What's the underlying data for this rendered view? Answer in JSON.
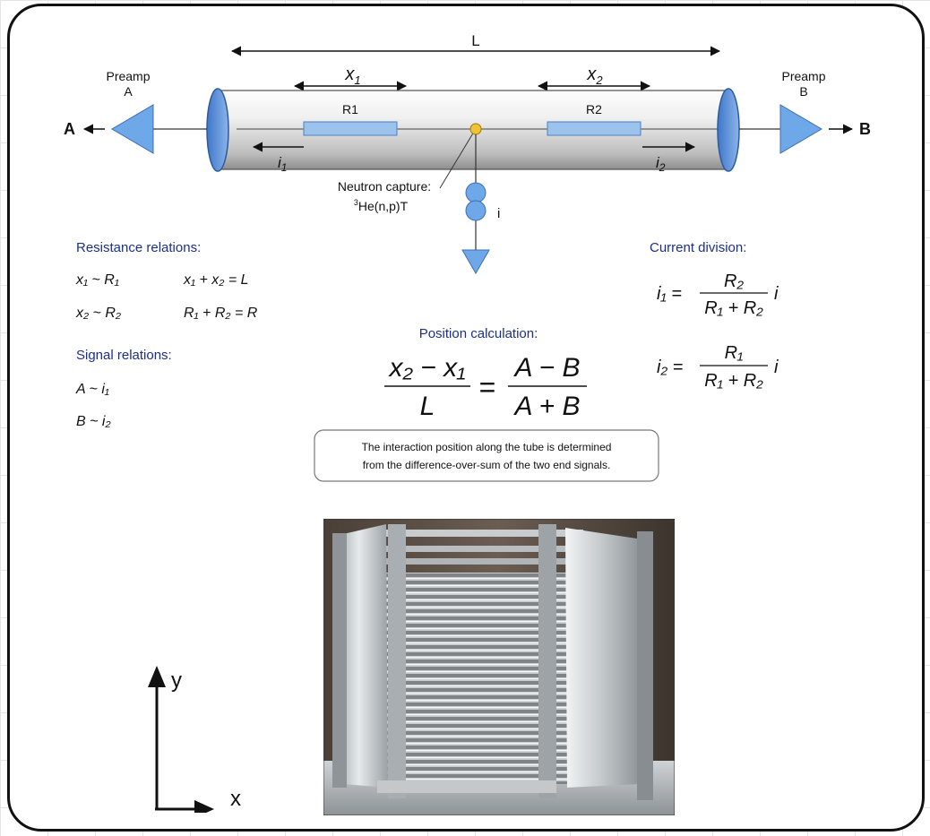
{
  "diagram": {
    "length_label": "L",
    "x1_label": "x",
    "x1_sub": "1",
    "x2_label": "x",
    "x2_sub": "2",
    "r1_label": "R1",
    "r2_label": "R2",
    "i1_label": "i",
    "i1_sub": "1",
    "i2_label": "i",
    "i2_sub": "2",
    "preamp_a": {
      "line1": "Preamp",
      "line2": "A"
    },
    "preamp_b": {
      "line1": "Preamp",
      "line2": "B"
    },
    "out_a": "A",
    "out_b": "B",
    "capture_line1": "Neutron capture:",
    "capture_sup": "3",
    "capture_line2": "He(n,p)T",
    "current_label": "i",
    "colors": {
      "triangle": "#6fa8e8",
      "resistor": "#9cc3ec",
      "heading": "#1a2f8f",
      "capture": "#f2c233"
    }
  },
  "resistance": {
    "heading": "Resistance relations:",
    "rows": [
      {
        "a": "x₁ ~ R₁",
        "b": "x₁ + x₂ = L"
      },
      {
        "a": "x₂ ~ R₂",
        "b": "R₁ + R₂ = R"
      }
    ]
  },
  "signal": {
    "heading": "Signal relations:",
    "rows": [
      "A ~ i₁",
      "B ~ i₂"
    ]
  },
  "position": {
    "heading": "Position calculation:",
    "lhs_num": "x₂ − x₁",
    "lhs_den": "L",
    "equals": "=",
    "rhs_num": "A − B",
    "rhs_den": "A + B"
  },
  "current_division": {
    "heading": "Current division:",
    "eq1": {
      "lhs": "i₁ =",
      "num": "R₂",
      "den": "R₁ + R₂",
      "tail": "i"
    },
    "eq2": {
      "lhs": "i₂ =",
      "num": "R₁",
      "den": "R₁ + R₂",
      "tail": "i"
    }
  },
  "note": {
    "line1": "The interaction position along the tube is determined",
    "line2": "from the difference-over-sum of the  two end signals."
  },
  "axes": {
    "y_label": "y",
    "x_label": "x"
  }
}
